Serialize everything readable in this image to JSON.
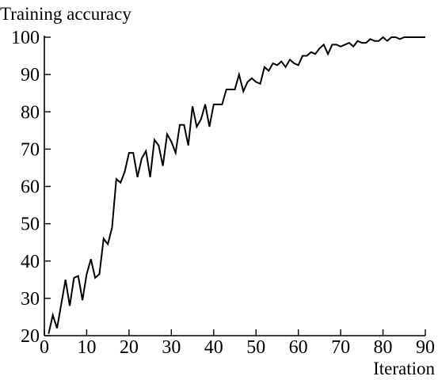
{
  "chart_data": {
    "type": "line",
    "title": "",
    "ylabel": "Training accuracy",
    "xlabel": "Iteration",
    "xlim": [
      0,
      90
    ],
    "ylim": [
      20,
      100
    ],
    "x_ticks": [
      0,
      10,
      20,
      30,
      40,
      50,
      60,
      70,
      80,
      90
    ],
    "y_ticks": [
      20,
      30,
      40,
      50,
      60,
      70,
      80,
      90,
      100
    ],
    "grid": false,
    "legend": "none",
    "line_color": "#000000",
    "series": [
      {
        "x": [
          1,
          2,
          3,
          4,
          5,
          6,
          7,
          8,
          9,
          10,
          11,
          12,
          13,
          14,
          15,
          16,
          17,
          18,
          19,
          20,
          21,
          22,
          23,
          24,
          25,
          26,
          27,
          28,
          29,
          30,
          31,
          32,
          33,
          34,
          35,
          36,
          37,
          38,
          39,
          40,
          41,
          42,
          43,
          44,
          45,
          46,
          47,
          48,
          49,
          50,
          51,
          52,
          53,
          54,
          55,
          56,
          57,
          58,
          59,
          60,
          61,
          62,
          63,
          64,
          65,
          66,
          67,
          68,
          69,
          70,
          71,
          72,
          73,
          74,
          75,
          76,
          77,
          78,
          79,
          80,
          81,
          82,
          83,
          84,
          85,
          86,
          87,
          88,
          89,
          90
        ],
        "values": [
          20.5,
          25.5,
          22,
          28.5,
          35,
          28,
          35.5,
          36,
          29.5,
          36.5,
          40.5,
          35.5,
          36.5,
          46,
          44.5,
          49,
          62,
          61,
          64,
          69,
          69,
          62.5,
          67.5,
          69.5,
          62.5,
          72.5,
          71,
          65.5,
          74,
          72,
          69,
          76.5,
          76.5,
          71,
          81.5,
          76,
          78,
          82,
          76,
          82,
          82,
          82,
          86,
          86,
          86,
          90,
          85.5,
          88,
          89,
          88,
          87.5,
          92,
          91,
          93,
          92.5,
          93.5,
          92,
          94,
          93,
          92.5,
          95,
          95,
          96,
          95.5,
          97,
          98,
          95.5,
          98,
          98,
          97.5,
          98,
          98.5,
          97.5,
          99,
          98.5,
          98.5,
          99.5,
          99,
          99,
          100,
          99,
          100,
          100,
          99.5,
          100,
          100,
          100,
          100,
          100,
          100
        ]
      }
    ]
  }
}
